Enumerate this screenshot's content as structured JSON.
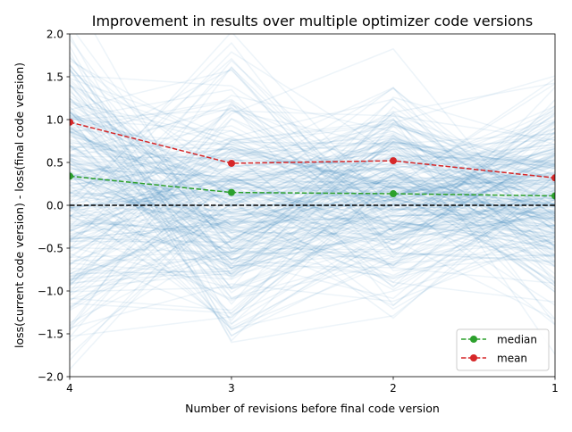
{
  "chart_data": {
    "type": "line",
    "title": "Improvement in results over multiple optimizer code versions",
    "xlabel": "Number of revisions before final code version",
    "ylabel": "loss(current code version) - loss(final code version)",
    "categories": [
      "4",
      "3",
      "2",
      "1"
    ],
    "ylim": [
      -2.0,
      2.0
    ],
    "yticks": [
      "2.0",
      "1.5",
      "1.0",
      "0.5",
      "0.0",
      "−0.5",
      "−1.0",
      "−1.5",
      "−2.0"
    ],
    "ytick_values": [
      2.0,
      1.5,
      1.0,
      0.5,
      0.0,
      -0.5,
      -1.0,
      -1.5,
      -2.0
    ],
    "grid": false,
    "legend_placement": "lower-right",
    "reference_line": {
      "y": 0.0,
      "color": "#000000",
      "style": "dashed"
    },
    "background_lines_color": "#1f77b4",
    "series": [
      {
        "name": "median",
        "color": "#2ca02c",
        "values": [
          0.34,
          0.15,
          0.135,
          0.11
        ]
      },
      {
        "name": "mean",
        "color": "#d62728",
        "values": [
          0.97,
          0.49,
          0.52,
          0.32
        ]
      }
    ]
  }
}
